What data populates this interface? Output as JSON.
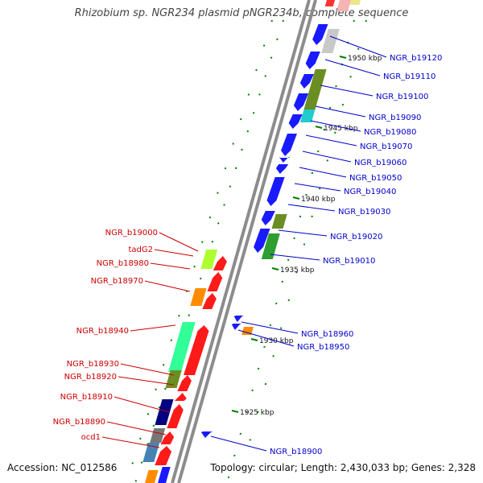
{
  "title": "Rhizobium sp. NGR234 plasmid pNGR234b, complete sequence",
  "footer": {
    "accession": "Accession: NC_012586",
    "topology": "Topology: circular; Length: 2,430,033 bp; Genes: 2,328"
  },
  "colors": {
    "backbone": "#8c8c8c",
    "tick": "#008000",
    "forward_label": "#0000cc",
    "reverse_label": "#cc0000"
  },
  "scale_labels": [
    "1950 kbp",
    "1945 kbp",
    "1940 kbp",
    "1935 kbp",
    "1930 kbp",
    "1925 kbp"
  ],
  "genes_forward": [
    {
      "label": "NGR_b19120"
    },
    {
      "label": "NGR_b19110"
    },
    {
      "label": "NGR_b19100"
    },
    {
      "label": "NGR_b19090"
    },
    {
      "label": "NGR_b19080"
    },
    {
      "label": "NGR_b19070"
    },
    {
      "label": "NGR_b19060"
    },
    {
      "label": "NGR_b19050"
    },
    {
      "label": "NGR_b19040"
    },
    {
      "label": "NGR_b19030"
    },
    {
      "label": "NGR_b19020"
    },
    {
      "label": "NGR_b19010"
    },
    {
      "label": "NGR_b18960"
    },
    {
      "label": "NGR_b18950"
    },
    {
      "label": "NGR_b18900"
    }
  ],
  "genes_reverse": [
    {
      "label": "NGR_b19000"
    },
    {
      "label": "tadG2"
    },
    {
      "label": "NGR_b18980"
    },
    {
      "label": "NGR_b18970"
    },
    {
      "label": "NGR_b18940"
    },
    {
      "label": "NGR_b18930"
    },
    {
      "label": "NGR_b18920"
    },
    {
      "label": "NGR_b18910"
    },
    {
      "label": "NGR_b18890"
    },
    {
      "label": "ocd1"
    }
  ]
}
